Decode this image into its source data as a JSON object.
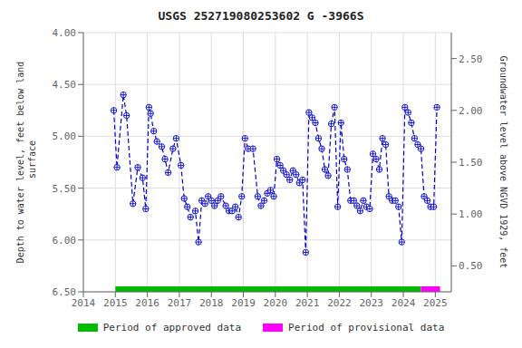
{
  "chart_data": {
    "type": "line",
    "title": "USGS 252719080253602 G  -3966S",
    "ylabel": "Depth to water level, feet below land\n surface",
    "y2label": "Groundwater level above NGVD 1929, feet",
    "x": [
      2014.95,
      2015.05,
      2015.25,
      2015.35,
      2015.55,
      2015.7,
      2015.85,
      2015.95,
      2016.05,
      2016.1,
      2016.2,
      2016.3,
      2016.45,
      2016.55,
      2016.65,
      2016.8,
      2016.9,
      2017.05,
      2017.15,
      2017.25,
      2017.35,
      2017.5,
      2017.6,
      2017.7,
      2017.8,
      2017.9,
      2018.0,
      2018.1,
      2018.2,
      2018.3,
      2018.45,
      2018.55,
      2018.65,
      2018.75,
      2018.85,
      2018.95,
      2019.05,
      2019.15,
      2019.3,
      2019.45,
      2019.55,
      2019.65,
      2019.75,
      2019.85,
      2019.95,
      2020.05,
      2020.15,
      2020.25,
      2020.35,
      2020.45,
      2020.55,
      2020.65,
      2020.75,
      2020.85,
      2020.95,
      2021.05,
      2021.15,
      2021.25,
      2021.35,
      2021.45,
      2021.55,
      2021.65,
      2021.75,
      2021.85,
      2021.95,
      2022.05,
      2022.15,
      2022.25,
      2022.35,
      2022.45,
      2022.55,
      2022.65,
      2022.75,
      2022.85,
      2022.95,
      2023.05,
      2023.15,
      2023.25,
      2023.35,
      2023.45,
      2023.55,
      2023.65,
      2023.75,
      2023.85,
      2023.95,
      2024.05,
      2024.15,
      2024.25,
      2024.35,
      2024.45,
      2024.55,
      2024.65,
      2024.75,
      2024.85,
      2024.95,
      2025.05
    ],
    "series": [
      {
        "values": [
          4.75,
          5.3,
          4.6,
          4.8,
          5.65,
          5.3,
          5.4,
          5.7,
          4.72,
          4.78,
          4.95,
          5.05,
          5.1,
          5.22,
          5.35,
          5.12,
          5.02,
          5.28,
          5.6,
          5.68,
          5.78,
          5.72,
          6.02,
          5.62,
          5.65,
          5.58,
          5.62,
          5.67,
          5.62,
          5.58,
          5.67,
          5.72,
          5.72,
          5.68,
          5.78,
          5.58,
          5.02,
          5.12,
          5.12,
          5.58,
          5.67,
          5.62,
          5.55,
          5.52,
          5.58,
          5.22,
          5.28,
          5.33,
          5.37,
          5.42,
          5.33,
          5.37,
          5.45,
          5.42,
          6.12,
          4.77,
          4.82,
          4.87,
          5.02,
          5.12,
          5.32,
          5.38,
          4.88,
          4.72,
          5.68,
          4.87,
          5.22,
          5.32,
          5.62,
          5.62,
          5.67,
          5.72,
          5.62,
          5.68,
          5.7,
          5.17,
          5.22,
          5.32,
          5.02,
          5.08,
          5.58,
          5.62,
          5.62,
          5.68,
          6.02,
          4.72,
          4.77,
          4.87,
          5.02,
          5.08,
          5.12,
          5.58,
          5.62,
          5.68,
          5.68,
          4.72
        ],
        "color": "#0000CC",
        "line_style": "dashed",
        "marker": "circle-plus"
      }
    ],
    "xlim": [
      2014.0,
      2025.5
    ],
    "xticks": [
      2014,
      2015,
      2016,
      2017,
      2018,
      2019,
      2020,
      2021,
      2022,
      2023,
      2024,
      2025
    ],
    "ylim": [
      6.5,
      4.0
    ],
    "yticks": [
      {
        "value": 4.0,
        "label": "4.00"
      },
      {
        "value": 4.5,
        "label": "4.50"
      },
      {
        "value": 5.0,
        "label": "5.00"
      },
      {
        "value": 5.5,
        "label": "5.50"
      },
      {
        "value": 6.0,
        "label": "6.00"
      },
      {
        "value": 6.5,
        "label": "6.50"
      }
    ],
    "y2lim": [
      0.25,
      2.75
    ],
    "y2ticks": [
      {
        "value": 0.5,
        "label": "0.50"
      },
      {
        "value": 1.0,
        "label": "1.00"
      },
      {
        "value": 1.5,
        "label": "1.50"
      },
      {
        "value": 2.0,
        "label": "2.00"
      },
      {
        "value": 2.5,
        "label": "2.50"
      }
    ],
    "grid": true,
    "legend": "bottom",
    "periods": [
      {
        "name": "Period of approved data",
        "start": 2015.0,
        "end": 2024.55,
        "color": "#00BB00"
      },
      {
        "name": "Period of provisional data",
        "start": 2024.55,
        "end": 2025.15,
        "color": "#FF00FF"
      }
    ]
  }
}
